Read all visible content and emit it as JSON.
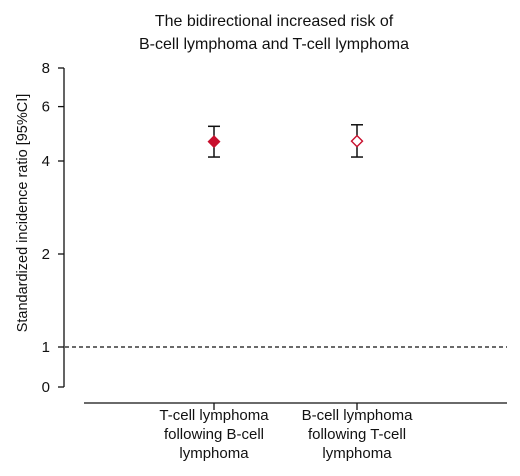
{
  "chart_data": {
    "type": "scatter",
    "title_lines": [
      "The bidirectional increased risk of",
      "B-cell lymphoma and T-cell lymphoma"
    ],
    "ylabel": "Standardized incidence ratio [95%CI]",
    "yscale": "log",
    "yticks": [
      0,
      1,
      2,
      4,
      6,
      8
    ],
    "ylim": [
      0,
      8
    ],
    "reference_line": {
      "y": 1,
      "style": "dashed"
    },
    "categories": [
      [
        "T-cell lymphoma",
        "following B-cell",
        "lymphoma"
      ],
      [
        "B-cell lymphoma",
        "following T-cell",
        "lymphoma"
      ]
    ],
    "points": [
      {
        "estimate": 4.62,
        "ci_low": 4.12,
        "ci_high": 5.18,
        "marker": "diamond-filled",
        "color": "#c8102e"
      },
      {
        "estimate": 4.64,
        "ci_low": 4.12,
        "ci_high": 5.24,
        "marker": "diamond-open",
        "color": "#c8102e"
      }
    ],
    "grid": false,
    "legend": "none"
  }
}
